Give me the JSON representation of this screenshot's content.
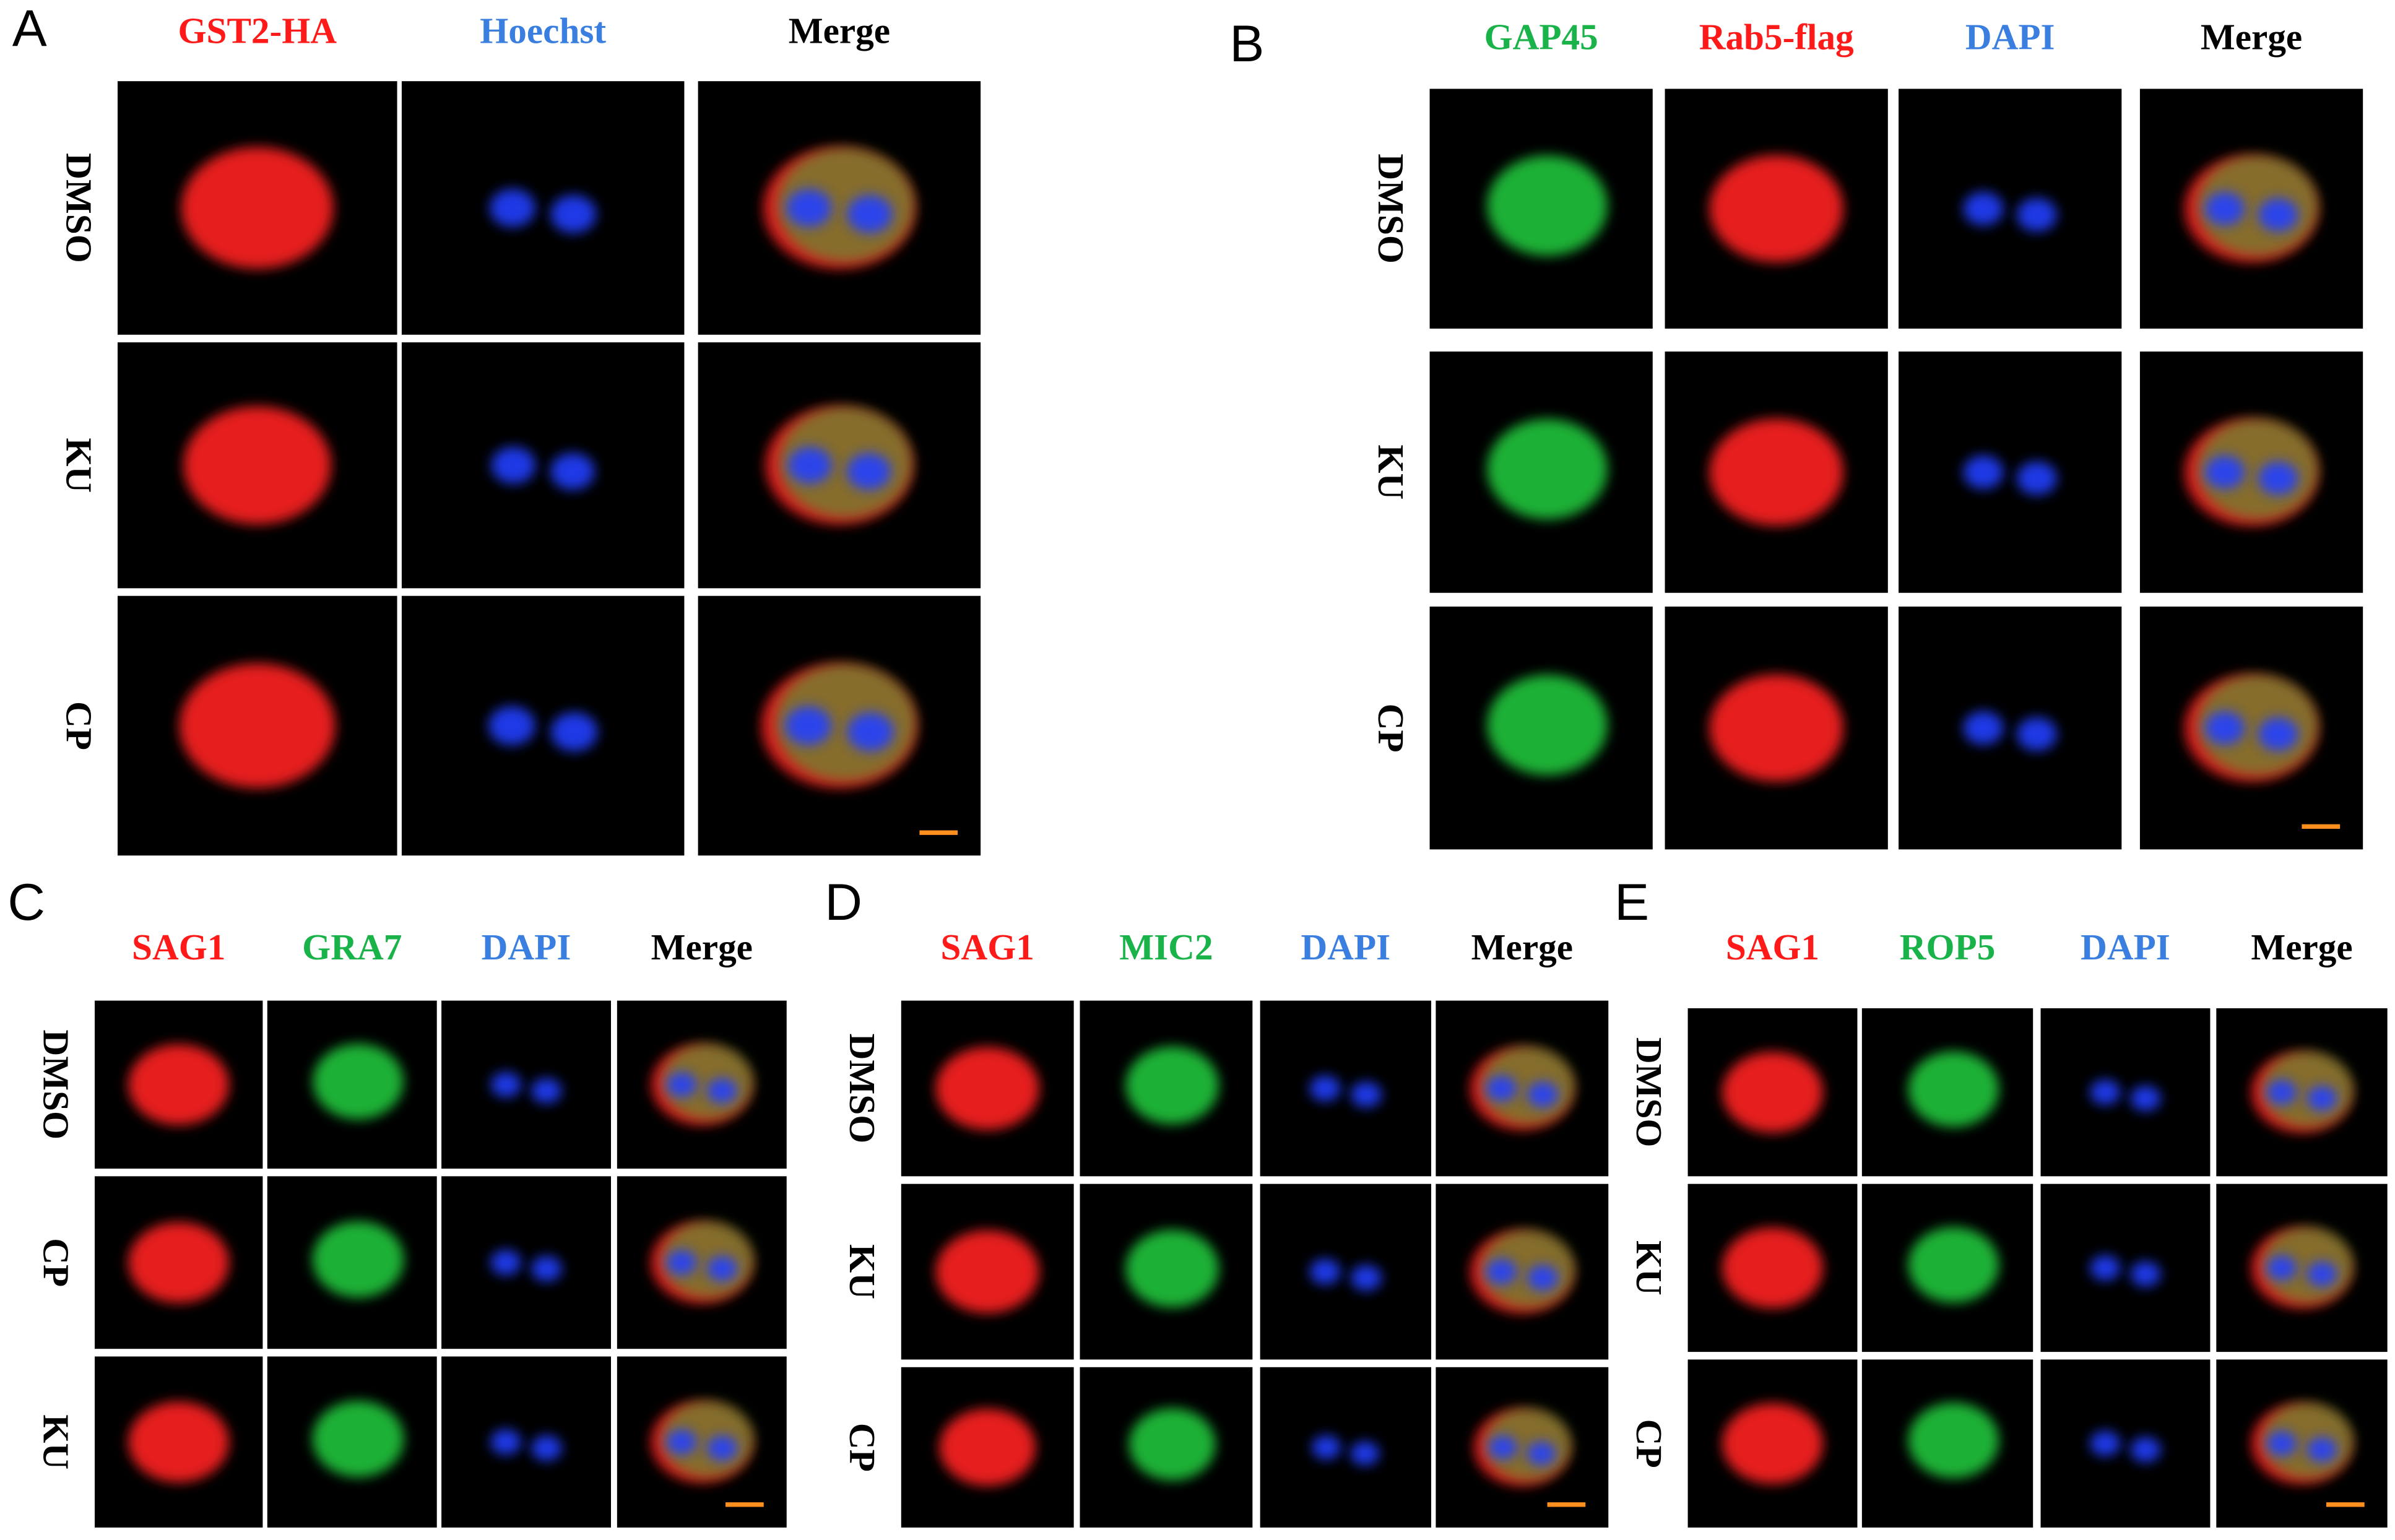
{
  "panels": [
    {
      "letter": "A",
      "columns": [
        {
          "label": "GST2-HA",
          "color": "#ff1a1a"
        },
        {
          "label": "Hoechst",
          "color": "#3a7fe0"
        },
        {
          "label": "Merge",
          "color": "#000000"
        }
      ],
      "rows": [
        "DMSO",
        "KU",
        "CP"
      ]
    },
    {
      "letter": "B",
      "columns": [
        {
          "label": "GAP45",
          "color": "#19b34a"
        },
        {
          "label": "Rab5-flag",
          "color": "#ff1a1a"
        },
        {
          "label": "DAPI",
          "color": "#3a7fe0"
        },
        {
          "label": "Merge",
          "color": "#000000"
        }
      ],
      "rows": [
        "DMSO",
        "KU",
        "CP"
      ]
    },
    {
      "letter": "C",
      "columns": [
        {
          "label": "SAG1",
          "color": "#ff1a1a"
        },
        {
          "label": "GRA7",
          "color": "#19b34a"
        },
        {
          "label": "DAPI",
          "color": "#3a7fe0"
        },
        {
          "label": "Merge",
          "color": "#000000"
        }
      ],
      "rows": [
        "DMSO",
        "CP",
        "KU"
      ]
    },
    {
      "letter": "D",
      "columns": [
        {
          "label": "SAG1",
          "color": "#ff1a1a"
        },
        {
          "label": "MIC2",
          "color": "#19b34a"
        },
        {
          "label": "DAPI",
          "color": "#3a7fe0"
        },
        {
          "label": "Merge",
          "color": "#000000"
        }
      ],
      "rows": [
        "DMSO",
        "KU",
        "CP"
      ]
    },
    {
      "letter": "E",
      "columns": [
        {
          "label": "SAG1",
          "color": "#ff1a1a"
        },
        {
          "label": "ROP5",
          "color": "#19b34a"
        },
        {
          "label": "DAPI",
          "color": "#3a7fe0"
        },
        {
          "label": "Merge",
          "color": "#000000"
        }
      ],
      "rows": [
        "DMSO",
        "KU",
        "CP"
      ]
    }
  ]
}
